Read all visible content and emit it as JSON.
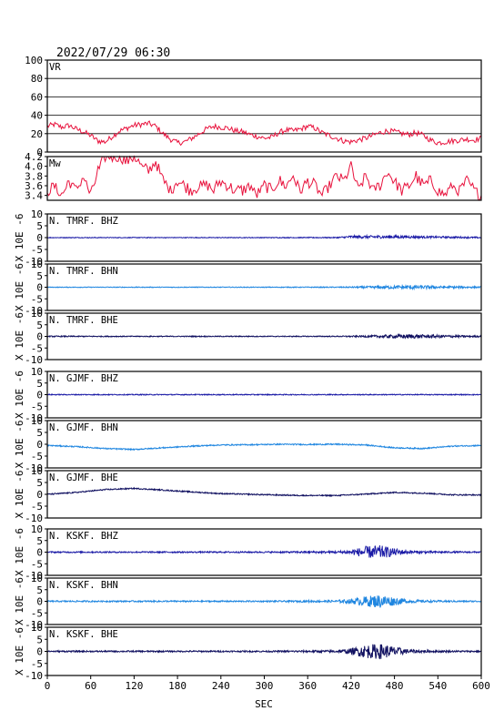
{
  "chart_data": {
    "type": "line",
    "title": "2022/07/29  06:30",
    "xlabel": "SEC",
    "xlim": [
      0,
      600
    ],
    "xticks": [
      "0",
      "60",
      "120",
      "180",
      "240",
      "300",
      "360",
      "420",
      "480",
      "540",
      "600"
    ],
    "grid": "horizontal lines in VR panel only",
    "colors": {
      "frame": "#000000",
      "vr_mw_line": "#e8113c",
      "dark_blue": "#1a1aa6",
      "light_blue": "#1f86e0",
      "navy": "#101060"
    },
    "panels": [
      {
        "label": "VR",
        "ylim": [
          0,
          100
        ],
        "yticks": [
          "0",
          "20",
          "40",
          "60",
          "80",
          "100"
        ],
        "x": [
          0,
          10,
          20,
          30,
          40,
          50,
          60,
          70,
          80,
          90,
          100,
          110,
          120,
          130,
          140,
          150,
          160,
          170,
          180,
          190,
          200,
          210,
          220,
          230,
          240,
          250,
          260,
          270,
          280,
          290,
          300,
          310,
          320,
          330,
          340,
          350,
          360,
          370,
          380,
          390,
          400,
          410,
          420,
          430,
          440,
          450,
          460,
          470,
          480,
          490,
          500,
          510,
          520,
          530,
          540,
          550,
          560,
          570,
          580,
          590,
          600
        ],
        "values": [
          28,
          30,
          27,
          29,
          25,
          22,
          18,
          12,
          11,
          17,
          23,
          26,
          29,
          30,
          31,
          28,
          20,
          14,
          10,
          11,
          15,
          20,
          25,
          28,
          27,
          26,
          23,
          22,
          19,
          17,
          15,
          16,
          21,
          24,
          23,
          25,
          28,
          26,
          21,
          18,
          15,
          12,
          11,
          13,
          15,
          18,
          21,
          23,
          22,
          20,
          19,
          21,
          18,
          13,
          10,
          11,
          12,
          13,
          14,
          13,
          15
        ],
        "color": "#e8113c"
      },
      {
        "label": "Mw",
        "ylim": [
          3.3,
          4.2
        ],
        "yticks": [
          "3.4",
          "3.6",
          "3.8",
          "4.0",
          "4.2"
        ],
        "x": [
          0,
          10,
          20,
          30,
          40,
          50,
          60,
          70,
          80,
          90,
          100,
          110,
          120,
          130,
          140,
          150,
          160,
          170,
          180,
          190,
          200,
          210,
          220,
          230,
          240,
          250,
          260,
          270,
          280,
          290,
          300,
          310,
          320,
          330,
          340,
          350,
          360,
          370,
          380,
          390,
          400,
          410,
          420,
          430,
          440,
          450,
          460,
          470,
          480,
          490,
          500,
          510,
          520,
          530,
          540,
          550,
          560,
          570,
          580,
          590,
          600
        ],
        "values": [
          3.5,
          3.6,
          3.4,
          3.7,
          3.5,
          3.8,
          3.4,
          3.9,
          4.2,
          4.2,
          4.2,
          4.1,
          4.2,
          4.0,
          3.9,
          4.1,
          3.7,
          3.5,
          3.7,
          3.6,
          3.5,
          3.6,
          3.6,
          3.5,
          3.7,
          3.6,
          3.5,
          3.5,
          3.6,
          3.4,
          3.6,
          3.5,
          3.7,
          3.6,
          3.8,
          3.5,
          3.7,
          3.6,
          3.4,
          3.6,
          3.8,
          3.7,
          4.0,
          3.5,
          3.8,
          3.5,
          3.6,
          3.9,
          3.7,
          3.5,
          3.6,
          3.8,
          3.6,
          3.7,
          3.5,
          3.4,
          3.6,
          3.5,
          3.7,
          3.5,
          3.4
        ],
        "color": "#e8113c"
      },
      {
        "label": "N. TMRF. BHZ",
        "ylim": [
          -10,
          10
        ],
        "yticks": [
          "-10",
          "-5",
          "0",
          "5",
          "10"
        ],
        "ylabel": "X 10E -6",
        "color": "#1a1aa6",
        "x": [
          0,
          100,
          200,
          300,
          400,
          420,
          480,
          540,
          600
        ],
        "values": [
          0,
          0,
          0,
          0,
          0,
          0.3,
          0.3,
          0.2,
          0
        ],
        "noise": [
          0.15,
          0.15,
          0.15,
          0.15,
          0.2,
          0.6,
          0.6,
          0.4,
          0.3
        ]
      },
      {
        "label": "N. TMRF. BHN",
        "ylim": [
          -10,
          10
        ],
        "yticks": [
          "-10",
          "-5",
          "0",
          "5",
          "10"
        ],
        "ylabel": "X 10E -6",
        "color": "#1f86e0",
        "x": [
          0,
          100,
          200,
          300,
          400,
          440,
          500,
          560,
          600
        ],
        "values": [
          0,
          0,
          0,
          0,
          0,
          0,
          0,
          0,
          0
        ],
        "noise": [
          0.15,
          0.15,
          0.15,
          0.15,
          0.2,
          0.4,
          0.9,
          0.5,
          0.3
        ]
      },
      {
        "label": "N. TMRF. BHE",
        "ylim": [
          -10,
          10
        ],
        "yticks": [
          "-10",
          "-5",
          "0",
          "5",
          "10"
        ],
        "ylabel": "X 10E -6",
        "color": "#101060",
        "x": [
          0,
          100,
          200,
          300,
          400,
          440,
          500,
          560,
          600
        ],
        "values": [
          0,
          0,
          0,
          0,
          0,
          0,
          0,
          0,
          0
        ],
        "noise": [
          0.25,
          0.2,
          0.2,
          0.2,
          0.2,
          0.4,
          0.9,
          0.5,
          0.3
        ]
      },
      {
        "label": "N. GJMF. BHZ",
        "ylim": [
          -10,
          10
        ],
        "yticks": [
          "-10",
          "-5",
          "0",
          "5",
          "10"
        ],
        "ylabel": "X 10E -6",
        "color": "#1a1aa6",
        "x": [
          0,
          100,
          200,
          300,
          400,
          500,
          600
        ],
        "values": [
          0,
          0,
          0,
          0,
          0,
          0,
          0
        ],
        "noise": [
          0.2,
          0.2,
          0.2,
          0.2,
          0.2,
          0.2,
          0.2
        ]
      },
      {
        "label": "N. GJMF. BHN",
        "ylim": [
          -10,
          10
        ],
        "yticks": [
          "-10",
          "-5",
          "0",
          "5",
          "10"
        ],
        "ylabel": "X 10E -6",
        "color": "#1f86e0",
        "x": [
          0,
          40,
          80,
          120,
          160,
          200,
          240,
          280,
          320,
          360,
          400,
          440,
          480,
          520,
          560,
          600
        ],
        "values": [
          -0.5,
          -1.0,
          -1.8,
          -2.2,
          -1.5,
          -0.8,
          -0.3,
          -0.2,
          0,
          -0.1,
          0,
          -0.3,
          -1.5,
          -1.8,
          -0.8,
          -0.5
        ],
        "noise": [
          0.25,
          0.25,
          0.25,
          0.25,
          0.25,
          0.25,
          0.25,
          0.25,
          0.25,
          0.25,
          0.25,
          0.25,
          0.25,
          0.25,
          0.25,
          0.25
        ]
      },
      {
        "label": "N. GJMF. BHE",
        "ylim": [
          -10,
          10
        ],
        "yticks": [
          "-10",
          "-5",
          "0",
          "5",
          "10"
        ],
        "ylabel": "X 10E -6",
        "color": "#101060",
        "x": [
          0,
          40,
          80,
          120,
          160,
          200,
          240,
          280,
          320,
          360,
          400,
          440,
          480,
          520,
          560,
          600
        ],
        "values": [
          0,
          0.8,
          2.0,
          2.5,
          1.8,
          1.0,
          0.3,
          0,
          -0.3,
          -0.5,
          -0.5,
          0.1,
          0.8,
          0.5,
          -0.2,
          -0.3
        ],
        "noise": [
          0.25,
          0.25,
          0.25,
          0.25,
          0.25,
          0.25,
          0.25,
          0.25,
          0.25,
          0.25,
          0.25,
          0.25,
          0.25,
          0.25,
          0.25,
          0.25
        ]
      },
      {
        "label": "N. KSKF. BHZ",
        "ylim": [
          -10,
          10
        ],
        "yticks": [
          "-10",
          "-5",
          "0",
          "5",
          "10"
        ],
        "ylabel": "X 10E -6",
        "color": "#1a1aa6",
        "x": [
          0,
          100,
          200,
          300,
          400,
          420,
          440,
          460,
          480,
          500,
          540,
          600
        ],
        "values": [
          0,
          0,
          0,
          0,
          0,
          0,
          0,
          0,
          0,
          0,
          0,
          0
        ],
        "noise": [
          0.3,
          0.3,
          0.3,
          0.3,
          0.5,
          1.0,
          2.5,
          3.0,
          1.6,
          0.7,
          0.4,
          0.3
        ]
      },
      {
        "label": "N. KSKF. BHN",
        "ylim": [
          -10,
          10
        ],
        "yticks": [
          "-10",
          "-5",
          "0",
          "5",
          "10"
        ],
        "ylabel": "X 10E -6",
        "color": "#1f86e0",
        "x": [
          0,
          100,
          200,
          300,
          400,
          420,
          440,
          460,
          480,
          500,
          540,
          600
        ],
        "values": [
          0,
          0,
          0,
          0,
          0,
          0,
          0,
          0,
          0,
          0,
          0,
          0
        ],
        "noise": [
          0.3,
          0.3,
          0.3,
          0.3,
          0.5,
          1.0,
          2.2,
          3.0,
          1.8,
          0.7,
          0.4,
          0.3
        ]
      },
      {
        "label": "N. KSKF. BHE",
        "ylim": [
          -10,
          10
        ],
        "yticks": [
          "-10",
          "-5",
          "0",
          "5",
          "10"
        ],
        "ylabel": "X 10E -6",
        "color": "#101060",
        "x": [
          0,
          100,
          200,
          300,
          400,
          420,
          440,
          460,
          480,
          500,
          540,
          600
        ],
        "values": [
          0,
          0,
          0,
          0,
          0,
          0,
          0,
          0,
          0,
          0,
          0,
          0
        ],
        "noise": [
          0.3,
          0.3,
          0.3,
          0.3,
          0.5,
          1.2,
          2.8,
          3.2,
          2.0,
          0.8,
          0.4,
          0.3
        ]
      }
    ]
  }
}
